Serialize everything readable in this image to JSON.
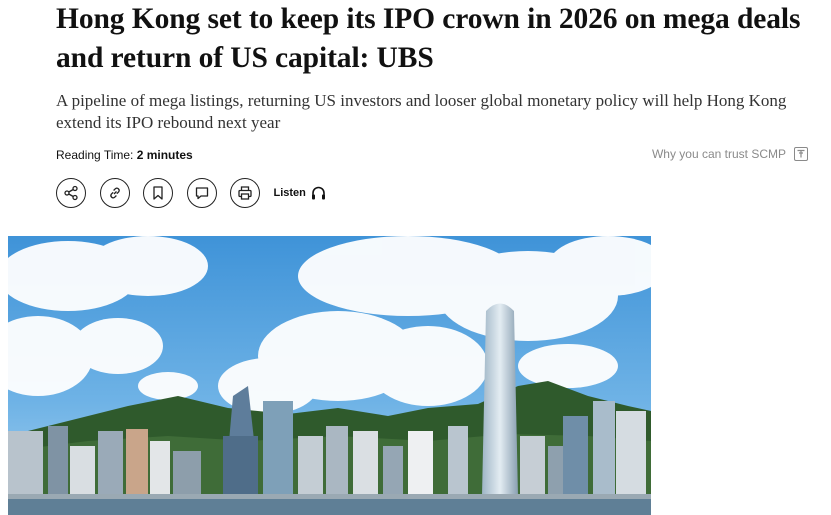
{
  "article": {
    "headline": "Hong Kong set to keep its IPO crown in 2026 on mega deals and return of US capital: UBS",
    "subheadline": "A pipeline of mega listings, returning US investors and looser global monetary policy will help Hong Kong extend its IPO rebound next year",
    "reading_time_label": "Reading Time:",
    "reading_time_value": "2 minutes",
    "trust_link": "Why you can trust SCMP"
  },
  "actions": {
    "icons": [
      "share-icon",
      "link-icon",
      "bookmark-icon",
      "comment-icon",
      "print-icon"
    ],
    "listen_label": "Listen",
    "listen_icon": "headphones-icon"
  },
  "colors": {
    "sky": "#4f9fdc",
    "text": "#111111",
    "muted": "#8a8a8a"
  }
}
